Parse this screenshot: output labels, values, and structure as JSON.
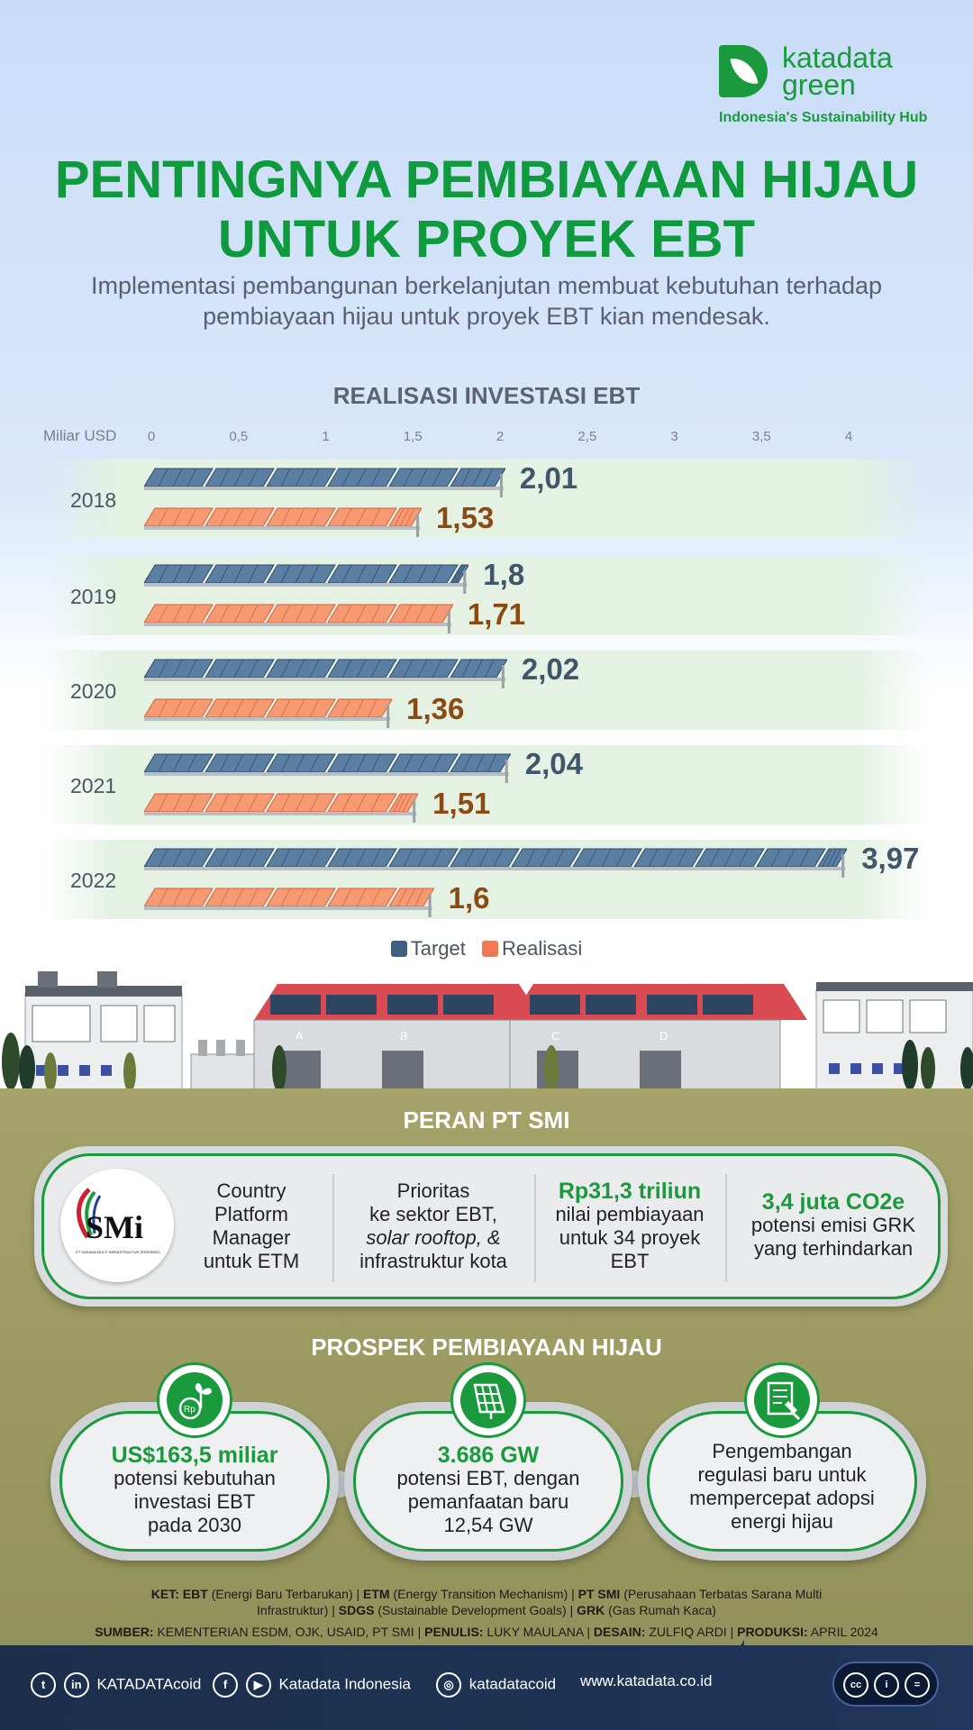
{
  "brand": {
    "line1": "katadata",
    "line2": "green",
    "tagline": "Indonesia's Sustainability Hub",
    "color": "#1a9a3c"
  },
  "header": {
    "title_line1": "PENTINGNYA PEMBIAYAAN HIJAU",
    "title_line2": "UNTUK PROYEK EBT",
    "subtitle_line1": "Implementasi pembangunan berkelanjutan membuat kebutuhan terhadap",
    "subtitle_line2": "pembiayaan hijau untuk proyek EBT kian mendesak."
  },
  "chart_data": {
    "type": "bar",
    "orientation": "horizontal",
    "title": "REALISASI INVESTASI EBT",
    "unit_label": "Miliar USD",
    "xlim": [
      0,
      4
    ],
    "ticks": [
      "0",
      "0,5",
      "1",
      "1,5",
      "2",
      "2,5",
      "3",
      "3,5",
      "4"
    ],
    "categories": [
      "2018",
      "2019",
      "2020",
      "2021",
      "2022"
    ],
    "series": [
      {
        "name": "Target",
        "values": [
          2.01,
          1.8,
          2.02,
          2.04,
          3.97
        ],
        "labels": [
          "2,01",
          "1,8",
          "2,02",
          "2,04",
          "3,97"
        ],
        "color": "#3f5f80"
      },
      {
        "name": "Realisasi",
        "values": [
          1.53,
          1.71,
          1.36,
          1.51,
          1.6
        ],
        "labels": [
          "1,53",
          "1,71",
          "1,36",
          "1,51",
          "1,6"
        ],
        "color": "#ee7a52"
      }
    ],
    "legend": "bottom-center"
  },
  "peran": {
    "heading": "PERAN PT SMI",
    "logo_text": "SMi",
    "logo_subtext": "PT SARANA MULTI INFRASTRUKTUR (PERSERO)",
    "col1": [
      "Country",
      "Platform",
      "Manager",
      "untuk ETM"
    ],
    "col2": [
      "Prioritas",
      "ke sektor EBT,",
      "solar rooftop, &",
      "infrastruktur kota"
    ],
    "col3_hl": "Rp31,3 triliun",
    "col3": [
      "nilai pembiayaan",
      "untuk 34 proyek",
      "EBT"
    ],
    "col4_hl": "3,4 juta CO2e",
    "col4": [
      "potensi emisi GRK",
      "yang terhindarkan"
    ]
  },
  "prospek": {
    "heading": "PROSPEK PEMBIAYAAN HIJAU",
    "cards": [
      {
        "hl": "US$163,5 miliar",
        "lines": [
          "potensi kebutuhan",
          "investasi EBT",
          "pada 2030"
        ],
        "icon": "money-plant-icon"
      },
      {
        "hl": "3.686 GW",
        "lines": [
          "potensi EBT, dengan",
          "pemanfaatan baru",
          "12,54 GW"
        ],
        "icon": "solar-panel-icon"
      },
      {
        "hl": "",
        "lines": [
          "Pengembangan",
          "regulasi baru untuk",
          "mempercepat adopsi",
          "energi hijau"
        ],
        "icon": "regulation-document-icon"
      }
    ]
  },
  "notes": {
    "ket_label": "KET:",
    "ket1_b": "EBT",
    "ket1": "(Energi Baru Terbarukan) |",
    "ket2_b": "ETM",
    "ket2": "(Energy Transition Mechanism) |",
    "ket3_b": "PT SMI",
    "ket3": "(Perusahaan Terbatas Sarana Multi",
    "ket3b": "Infrastruktur) |",
    "ket4_b": "SDGS",
    "ket4": "(Sustainable Development Goals) |",
    "ket5_b": "GRK",
    "ket5": "(Gas Rumah Kaca)",
    "sumber_label": "SUMBER:",
    "sumber": "KEMENTERIAN ESDM, OJK, USAID, PT SMI |",
    "penulis_label": "PENULIS:",
    "penulis": "LUKY MAULANA |",
    "desain_label": "DESAIN:",
    "desain": "ZULFIQ ARDI |",
    "produksi_label": "PRODUKSI:",
    "produksi": "APRIL 2024"
  },
  "footer": {
    "social1": "KATADATAcoid",
    "social2": "Katadata Indonesia",
    "social3": "katadatacoid",
    "website": "www.katadata.co.id",
    "twitter_glyph": "t",
    "linkedin_glyph": "in",
    "facebook_glyph": "f",
    "youtube_glyph": "▶",
    "instagram_glyph": "◎",
    "cc_glyph": "cc",
    "by_glyph": "i",
    "nd_glyph": "="
  },
  "buildings": {
    "labels": [
      "A",
      "B",
      "C",
      "D"
    ]
  }
}
